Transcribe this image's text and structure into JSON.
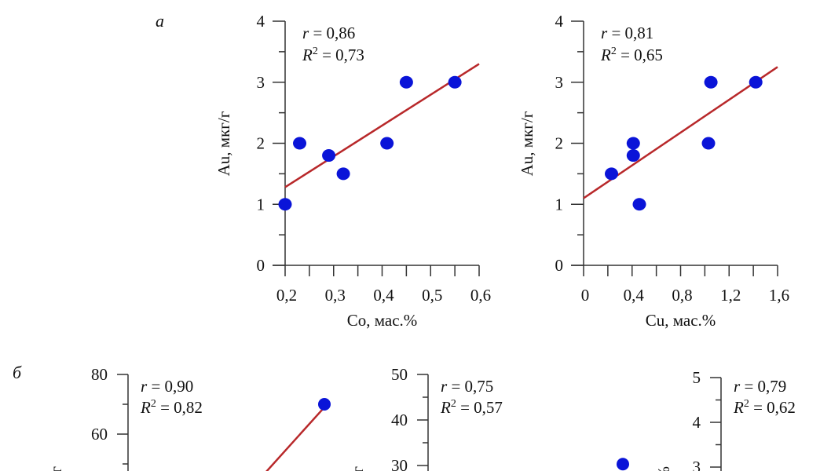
{
  "panel_labels": {
    "a": "а",
    "b": "б"
  },
  "colors": {
    "points": "#0a14d8",
    "trend": "#b8282a",
    "axis": "#333333"
  },
  "chart_data": [
    {
      "type": "scatter",
      "panel": "а",
      "xlabel": "Co, мас.%",
      "ylabel": "Au, мкг/г",
      "xlim": [
        0.2,
        0.6
      ],
      "ylim": [
        0,
        4
      ],
      "xticks": [
        0.2,
        0.3,
        0.4,
        0.5,
        0.6
      ],
      "xtick_labels": [
        "0,2",
        "0,3",
        "0,4",
        "0,5",
        "0,6"
      ],
      "yticks": [
        0,
        1,
        2,
        3,
        4
      ],
      "ytick_labels": [
        "0",
        "1",
        "2",
        "3",
        "4"
      ],
      "minor_x": 0.05,
      "minor_y": 0.5,
      "r": "0,86",
      "R2": "0,73",
      "points": [
        [
          0.2,
          1
        ],
        [
          0.23,
          2
        ],
        [
          0.29,
          1.8
        ],
        [
          0.32,
          1.5
        ],
        [
          0.41,
          2
        ],
        [
          0.45,
          3
        ],
        [
          0.55,
          3
        ]
      ],
      "trendline": [
        [
          0.2,
          1.28
        ],
        [
          0.6,
          3.3
        ]
      ]
    },
    {
      "type": "scatter",
      "panel": "а",
      "xlabel": "Cu, мас.%",
      "ylabel": "Au, мкг/г",
      "xlim": [
        0,
        1.6
      ],
      "ylim": [
        0,
        4
      ],
      "xticks": [
        0,
        0.4,
        0.8,
        1.2,
        1.6
      ],
      "xtick_labels": [
        "0",
        "0,4",
        "0,8",
        "1,2",
        "1,6"
      ],
      "yticks": [
        0,
        1,
        2,
        3,
        4
      ],
      "ytick_labels": [
        "0",
        "1",
        "2",
        "3",
        "4"
      ],
      "minor_x": 0.2,
      "minor_y": 0.5,
      "r": "0,81",
      "R2": "0,65",
      "points": [
        [
          0.23,
          1.5
        ],
        [
          0.41,
          2
        ],
        [
          0.41,
          1.8
        ],
        [
          0.46,
          1
        ],
        [
          1.03,
          2
        ],
        [
          1.05,
          3
        ],
        [
          1.42,
          3
        ]
      ],
      "trendline": [
        [
          0,
          1.1
        ],
        [
          1.6,
          3.25
        ]
      ]
    },
    {
      "type": "scatter",
      "panel": "б",
      "ylabel": "/г",
      "yticks": [
        60,
        80
      ],
      "ytick_labels": [
        "60",
        "80"
      ],
      "minor_y": 10,
      "r": "0,90",
      "R2": "0,82",
      "visible_points_y": [
        70
      ],
      "trendline_top_y": 69
    },
    {
      "type": "scatter",
      "panel": "б",
      "ylabel": "/г",
      "yticks": [
        30,
        40,
        50
      ],
      "ytick_labels": [
        "30",
        "40",
        "50"
      ],
      "minor_y": 5,
      "r": "0,75",
      "R2": "0,57",
      "visible_points_y": [
        30.3
      ]
    },
    {
      "type": "scatter",
      "panel": "б",
      "ylabel": "%",
      "yticks": [
        3,
        4,
        5
      ],
      "ytick_labels": [
        "3",
        "4",
        "5"
      ],
      "minor_y": 0.5,
      "r": "0,79",
      "R2": "0,62",
      "visible_points_y": []
    }
  ]
}
